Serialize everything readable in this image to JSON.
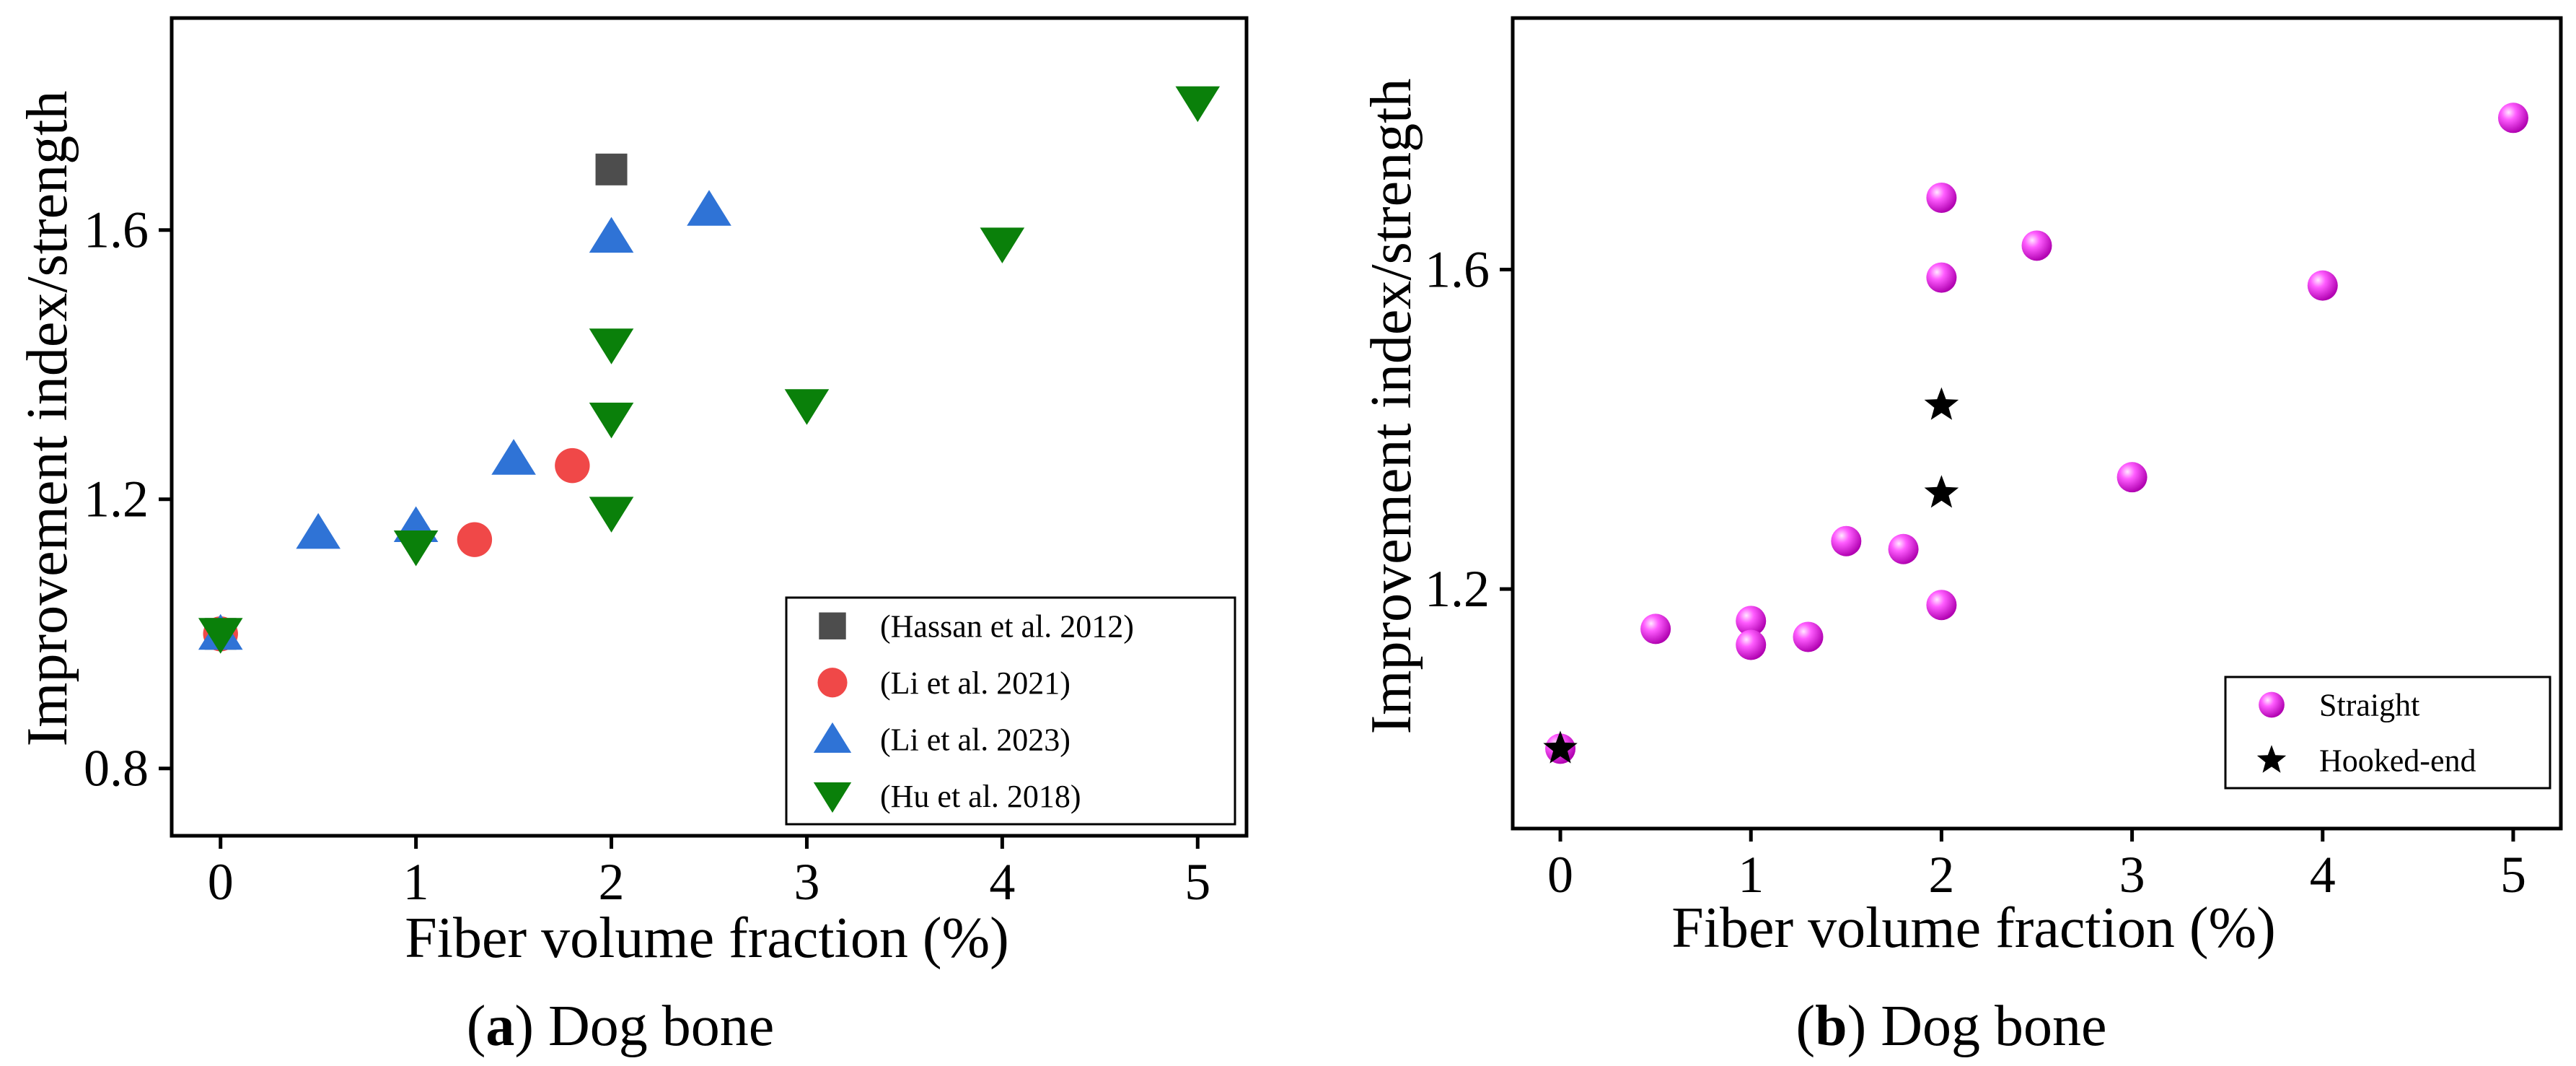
{
  "chart_data": [
    {
      "id": "a",
      "type": "scatter",
      "caption": {
        "letter": "a",
        "text": "Dog bone"
      },
      "xlabel": "Fiber volume fraction (%)",
      "ylabel": "Improvement index/strength",
      "xlim": [
        -0.25,
        5.25
      ],
      "ylim": [
        0.7,
        1.915
      ],
      "xticks": [
        0,
        1,
        2,
        3,
        4,
        5
      ],
      "yticks": [
        0.8,
        1.2,
        1.6
      ],
      "ytick_labels": [
        "0.8",
        "1.2",
        "1.6"
      ],
      "legend_position": "bottom-right",
      "series": [
        {
          "name": "(Hassan et al. 2012)",
          "marker": "square",
          "color": "#4d4d4d",
          "points": [
            [
              2,
              1.69
            ],
            [
              0,
              1.0
            ]
          ]
        },
        {
          "name": "(Li et al. 2021)",
          "marker": "circle",
          "color": "#f04848",
          "points": [
            [
              1.3,
              1.14
            ],
            [
              1.8,
              1.25
            ],
            [
              0,
              1.0
            ]
          ]
        },
        {
          "name": "(Li et al. 2023)",
          "marker": "triangle-up",
          "color": "#2f73d6",
          "points": [
            [
              0.5,
              1.15
            ],
            [
              1,
              1.16
            ],
            [
              1.5,
              1.26
            ],
            [
              2,
              1.59
            ],
            [
              2.5,
              1.63
            ],
            [
              0,
              1.0
            ]
          ]
        },
        {
          "name": "(Hu et al. 2018)",
          "marker": "triangle-down",
          "color": "#0a800a",
          "points": [
            [
              1,
              1.13
            ],
            [
              2,
              1.18
            ],
            [
              2,
              1.32
            ],
            [
              2,
              1.43
            ],
            [
              3,
              1.34
            ],
            [
              4,
              1.58
            ],
            [
              5,
              1.79
            ],
            [
              0,
              1.0
            ]
          ]
        }
      ]
    },
    {
      "id": "b",
      "type": "scatter",
      "caption": {
        "letter": "b",
        "text": "Dog bone"
      },
      "xlabel": "Fiber volume fraction (%)",
      "ylabel": "Improvement index/strength",
      "xlim": [
        -0.25,
        5.25
      ],
      "ylim": [
        0.9,
        1.915
      ],
      "xticks": [
        0,
        1,
        2,
        3,
        4,
        5
      ],
      "yticks": [
        1.2,
        1.6
      ],
      "ytick_labels": [
        "1.2",
        "1.6"
      ],
      "legend_position": "bottom-right",
      "series": [
        {
          "name": "Straight",
          "marker": "sphere",
          "color": "#ff00ff",
          "points": [
            [
              0,
              1.0
            ],
            [
              0.5,
              1.15
            ],
            [
              1,
              1.16
            ],
            [
              1,
              1.13
            ],
            [
              1.3,
              1.14
            ],
            [
              1.5,
              1.26
            ],
            [
              1.8,
              1.25
            ],
            [
              2,
              1.69
            ],
            [
              2,
              1.59
            ],
            [
              2,
              1.18
            ],
            [
              2.5,
              1.63
            ],
            [
              3,
              1.34
            ],
            [
              4,
              1.58
            ],
            [
              5,
              1.79
            ]
          ]
        },
        {
          "name": "Hooked-end",
          "marker": "star",
          "color": "#000000",
          "points": [
            [
              0,
              1.0
            ],
            [
              2,
              1.43
            ],
            [
              2,
              1.32
            ]
          ]
        }
      ]
    }
  ]
}
